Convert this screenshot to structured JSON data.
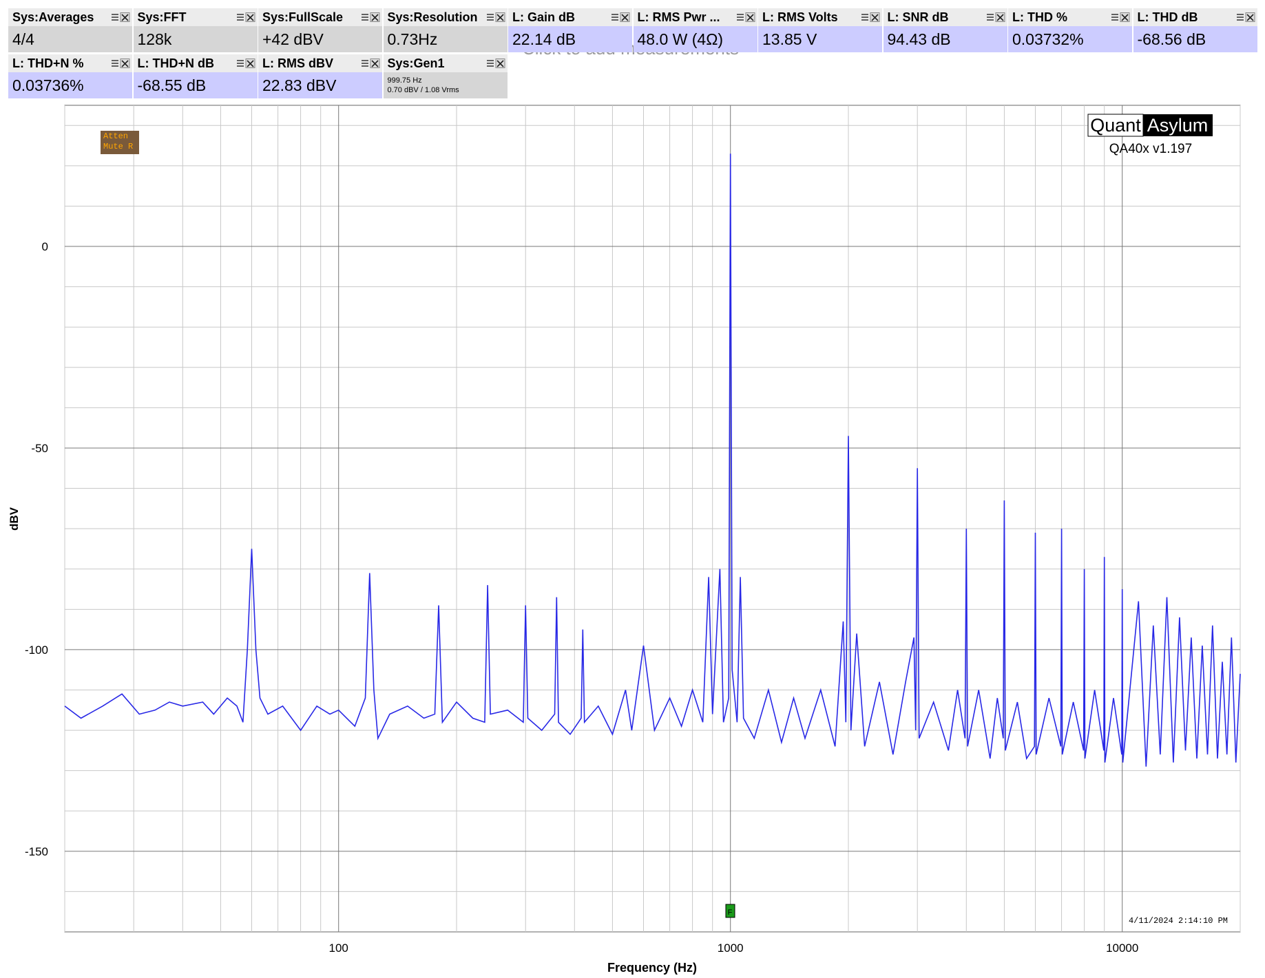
{
  "panels": [
    {
      "title": "Sys:Averages",
      "value": "4/4",
      "color": "#d6d6d6"
    },
    {
      "title": "Sys:FFT",
      "value": "128k",
      "color": "#d6d6d6"
    },
    {
      "title": "Sys:FullScale",
      "value": "+42 dBV",
      "color": "#d6d6d6"
    },
    {
      "title": "Sys:Resolution",
      "value": "0.73Hz",
      "color": "#d6d6d6"
    },
    {
      "title": "L: Gain dB",
      "value": "22.14 dB",
      "color": "#ccccff"
    },
    {
      "title": "L: RMS Pwr ...",
      "value": "48.0 W (4Ω)",
      "color": "#ccccff"
    },
    {
      "title": "L: RMS Volts",
      "value": "13.85 V",
      "color": "#ccccff"
    },
    {
      "title": "L: SNR dB",
      "value": "94.43 dB",
      "color": "#ccccff"
    },
    {
      "title": "L: THD %",
      "value": "0.03732%",
      "color": "#ccccff"
    },
    {
      "title": "L: THD dB",
      "value": "-68.56 dB",
      "color": "#ccccff"
    },
    {
      "title": "L: THD+N %",
      "value": "0.03736%",
      "color": "#ccccff"
    },
    {
      "title": "L: THD+N dB",
      "value": "-68.55 dB",
      "color": "#ccccff"
    },
    {
      "title": "L: RMS dBV",
      "value": "22.83 dBV",
      "color": "#ccccff"
    },
    {
      "title": "Sys:Gen1",
      "lines": [
        "999.75 Hz",
        "0.70 dBV  / 1.08 Vrms"
      ],
      "color": "#d6d6d6"
    }
  ],
  "hint": "Click to add measurements",
  "badge": {
    "lines": [
      "Atten",
      "Mute R"
    ]
  },
  "logo": {
    "left": "Quant",
    "right": "Asylum",
    "version": "QA40x v1.197"
  },
  "timestamp": "4/11/2024 2:14:10 PM",
  "marker": "F",
  "chart_data": {
    "type": "line",
    "x_label": "Frequency (Hz)",
    "y_label": "dBV",
    "x_scale": "log",
    "xlim": [
      20,
      20000
    ],
    "ylim": [
      -170,
      35
    ],
    "xticks": [
      100,
      1000,
      10000
    ],
    "yticks": [
      -150,
      -100,
      -50,
      0
    ],
    "x_minor_grid": [
      20,
      30,
      40,
      50,
      60,
      70,
      80,
      90,
      200,
      300,
      400,
      500,
      600,
      700,
      800,
      900,
      2000,
      3000,
      4000,
      5000,
      6000,
      7000,
      8000,
      9000,
      20000
    ],
    "y_minor_grid": [
      -160,
      -140,
      -130,
      -120,
      -110,
      -90,
      -80,
      -70,
      -60,
      -40,
      -30,
      -20,
      -10,
      10,
      20,
      30
    ],
    "grid": true,
    "series": [
      {
        "color": "#2828e6",
        "x": [
          20,
          22,
          25,
          28,
          31,
          34,
          37,
          40,
          45,
          48,
          52,
          55,
          57,
          58.5,
          60,
          61.5,
          63,
          66,
          72,
          80,
          88,
          95,
          100,
          110,
          117,
          120,
          123,
          126,
          135,
          150,
          165,
          176,
          180,
          184,
          200,
          220,
          236,
          240,
          244,
          270,
          296,
          300,
          304,
          330,
          356,
          360,
          364,
          390,
          416,
          420,
          424,
          460,
          500,
          540,
          560,
          600,
          640,
          700,
          750,
          800,
          850,
          880,
          900,
          940,
          960,
          990,
          1000,
          1010,
          1040,
          1060,
          1080,
          1150,
          1250,
          1350,
          1450,
          1550,
          1700,
          1850,
          1940,
          1970,
          2000,
          2030,
          2100,
          2200,
          2400,
          2600,
          2800,
          2940,
          2970,
          3000,
          3030,
          3300,
          3600,
          3800,
          3970,
          4000,
          4030,
          4300,
          4600,
          4800,
          4970,
          5000,
          5030,
          5400,
          5700,
          5970,
          6000,
          6030,
          6500,
          6970,
          7000,
          7030,
          7500,
          7970,
          8000,
          8030,
          8500,
          8970,
          9000,
          9030,
          9500,
          9970,
          10000,
          10030,
          11000,
          11500,
          12000,
          12500,
          13000,
          13500,
          14000,
          14500,
          15000,
          15500,
          16000,
          16500,
          17000,
          17500,
          18000,
          18500,
          19000,
          19500,
          20000
        ],
        "values": [
          -114,
          -117,
          -114,
          -111,
          -116,
          -115,
          -113,
          -114,
          -113,
          -116,
          -112,
          -114,
          -118,
          -100,
          -75,
          -100,
          -112,
          -116,
          -114,
          -120,
          -114,
          -116,
          -115,
          -119,
          -112,
          -81,
          -110,
          -122,
          -116,
          -114,
          -117,
          -116,
          -89,
          -118,
          -113,
          -117,
          -118,
          -84,
          -116,
          -115,
          -118,
          -89,
          -117,
          -120,
          -116,
          -87,
          -118,
          -121,
          -117,
          -95,
          -118,
          -114,
          -121,
          -110,
          -120,
          -99,
          -120,
          -112,
          -119,
          -110,
          -118,
          -82,
          -116,
          -80,
          -118,
          -112,
          23,
          -105,
          -118,
          -82,
          -117,
          -122,
          -110,
          -123,
          -112,
          -122,
          -110,
          -124,
          -93,
          -118,
          -47,
          -120,
          -96,
          -124,
          -108,
          -126,
          -108,
          -97,
          -120,
          -55,
          -122,
          -113,
          -125,
          -110,
          -122,
          -70,
          -124,
          -110,
          -127,
          -112,
          -122,
          -63,
          -125,
          -113,
          -127,
          -124,
          -71,
          -126,
          -112,
          -124,
          -70,
          -126,
          -113,
          -125,
          -80,
          -127,
          -110,
          -125,
          -77,
          -128,
          -112,
          -126,
          -85,
          -128,
          -88,
          -129,
          -94,
          -126,
          -87,
          -128,
          -92,
          -125,
          -97,
          -127,
          -99,
          -126,
          -94,
          -127,
          -103,
          -126,
          -97,
          -128,
          -106
        ]
      }
    ]
  }
}
